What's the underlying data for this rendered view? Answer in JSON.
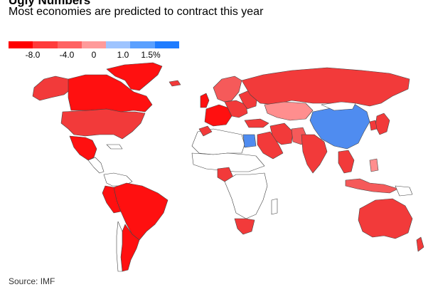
{
  "header": {
    "title": "Ugly Numbers",
    "subtitle": "Most economies are predicted to contract this year"
  },
  "legend": {
    "colors": [
      "#ff0000",
      "#ff3b3b",
      "#ff6262",
      "#ff9a9a",
      "#9ec4ff",
      "#5aa0ff",
      "#1f7cff"
    ],
    "ticks": [
      "-8.0",
      "-4.0",
      "0",
      "1.0",
      "1.5%"
    ]
  },
  "footer": {
    "source": "Source: IMF"
  },
  "palette": {
    "deep_red": "#ff1010",
    "red": "#f23a3a",
    "mid_red": "#f55a5a",
    "light_red": "#ff8e8e",
    "blue": "#4f8cf0",
    "no_data": "#ffffff",
    "border": "#444444"
  }
}
